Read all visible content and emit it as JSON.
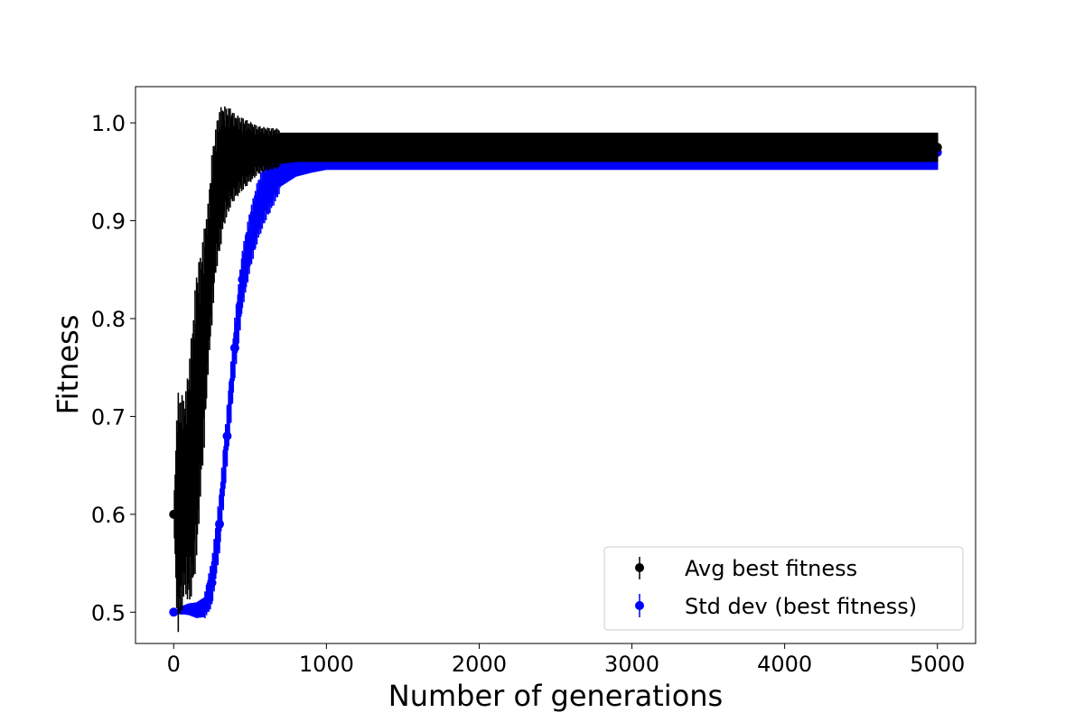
{
  "chart_data": {
    "type": "scatter",
    "title": "",
    "xlabel": "Number of generations",
    "ylabel": "Fitness",
    "xlim": [
      -250,
      5250
    ],
    "ylim": [
      0.468,
      1.037
    ],
    "xticks": [
      0,
      1000,
      2000,
      3000,
      4000,
      5000
    ],
    "xtick_labels": [
      "0",
      "1000",
      "2000",
      "3000",
      "4000",
      "5000"
    ],
    "yticks": [
      0.5,
      0.6,
      0.7,
      0.8,
      0.9,
      1.0
    ],
    "ytick_labels": [
      "0.5",
      "0.6",
      "0.7",
      "0.8",
      "0.9",
      "1.0"
    ],
    "grid": false,
    "legend_position": "lower-right",
    "colors": {
      "avg": "#000000",
      "std": "#0000ff"
    },
    "series": [
      {
        "name": "Avg best fitness",
        "style": "errorbar",
        "color": "#000000",
        "points": [
          [
            0,
            0.6,
            0.0
          ],
          [
            25,
            0.6,
            0.1
          ],
          [
            50,
            0.61,
            0.09
          ],
          [
            75,
            0.62,
            0.08
          ],
          [
            100,
            0.63,
            0.1
          ],
          [
            125,
            0.66,
            0.11
          ],
          [
            150,
            0.7,
            0.12
          ],
          [
            175,
            0.74,
            0.1
          ],
          [
            200,
            0.78,
            0.09
          ],
          [
            225,
            0.83,
            0.07
          ],
          [
            250,
            0.88,
            0.07
          ],
          [
            275,
            0.92,
            0.06
          ],
          [
            300,
            0.94,
            0.06
          ],
          [
            325,
            0.955,
            0.05
          ],
          [
            350,
            0.96,
            0.045
          ],
          [
            375,
            0.965,
            0.04
          ],
          [
            400,
            0.965,
            0.035
          ],
          [
            450,
            0.968,
            0.03
          ],
          [
            500,
            0.97,
            0.025
          ],
          [
            550,
            0.972,
            0.02
          ],
          [
            600,
            0.973,
            0.018
          ],
          [
            700,
            0.974,
            0.016
          ],
          [
            800,
            0.975,
            0.015
          ],
          [
            900,
            0.975,
            0.015
          ],
          [
            1000,
            0.975,
            0.015
          ],
          [
            5000,
            0.975,
            0.015
          ]
        ]
      },
      {
        "name": "Std dev (best fitness)",
        "style": "errorbar",
        "color": "#0000ff",
        "points": [
          [
            0,
            0.5,
            0.0
          ],
          [
            50,
            0.502,
            0.004
          ],
          [
            100,
            0.503,
            0.006
          ],
          [
            150,
            0.502,
            0.008
          ],
          [
            200,
            0.505,
            0.01
          ],
          [
            250,
            0.53,
            0.02
          ],
          [
            300,
            0.59,
            0.025
          ],
          [
            350,
            0.68,
            0.025
          ],
          [
            400,
            0.77,
            0.025
          ],
          [
            450,
            0.84,
            0.025
          ],
          [
            500,
            0.88,
            0.025
          ],
          [
            550,
            0.91,
            0.025
          ],
          [
            600,
            0.93,
            0.025
          ],
          [
            650,
            0.945,
            0.025
          ],
          [
            700,
            0.955,
            0.02
          ],
          [
            750,
            0.96,
            0.02
          ],
          [
            800,
            0.965,
            0.02
          ],
          [
            900,
            0.968,
            0.019
          ],
          [
            1000,
            0.97,
            0.018
          ],
          [
            5000,
            0.97,
            0.018
          ]
        ]
      }
    ]
  }
}
